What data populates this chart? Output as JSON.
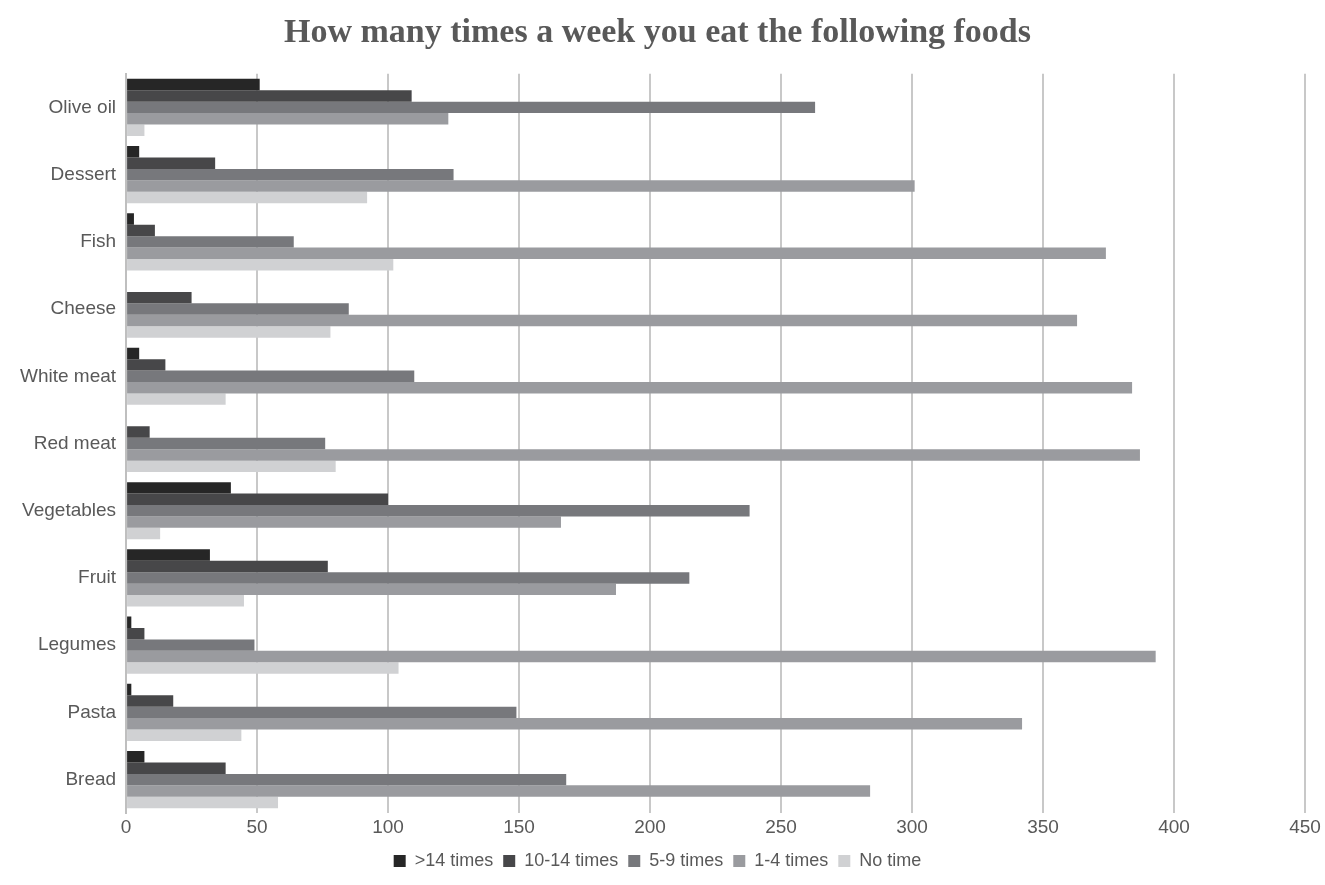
{
  "chart_data": {
    "type": "bar",
    "orientation": "horizontal",
    "title": "How many times a week you eat the following foods",
    "categories": [
      "Olive oil",
      "Dessert",
      "Fish",
      "Cheese",
      "White meat",
      "Red meat",
      "Vegetables",
      "Fruit",
      "Legumes",
      "Pasta",
      "Bread"
    ],
    "series": [
      {
        "name": ">14 times",
        "color": "#262626",
        "values": [
          51,
          5,
          3,
          0,
          5,
          0,
          40,
          32,
          2,
          2,
          7
        ]
      },
      {
        "name": "10-14 times",
        "color": "#474749",
        "values": [
          109,
          34,
          11,
          25,
          15,
          9,
          100,
          77,
          7,
          18,
          38
        ]
      },
      {
        "name": "5-9 times",
        "color": "#77787c",
        "values": [
          263,
          125,
          64,
          85,
          110,
          76,
          238,
          215,
          49,
          149,
          168
        ]
      },
      {
        "name": "1-4 times",
        "color": "#9a9b9f",
        "values": [
          123,
          301,
          374,
          363,
          384,
          387,
          166,
          187,
          393,
          342,
          284
        ]
      },
      {
        "name": "No time",
        "color": "#d0d1d3",
        "values": [
          7,
          92,
          102,
          78,
          38,
          80,
          13,
          45,
          104,
          44,
          58
        ]
      }
    ],
    "xlim": [
      0,
      450
    ],
    "xticks": [
      0,
      50,
      100,
      150,
      200,
      250,
      300,
      350,
      400,
      450
    ],
    "grid": "x",
    "legend": "bottom"
  }
}
